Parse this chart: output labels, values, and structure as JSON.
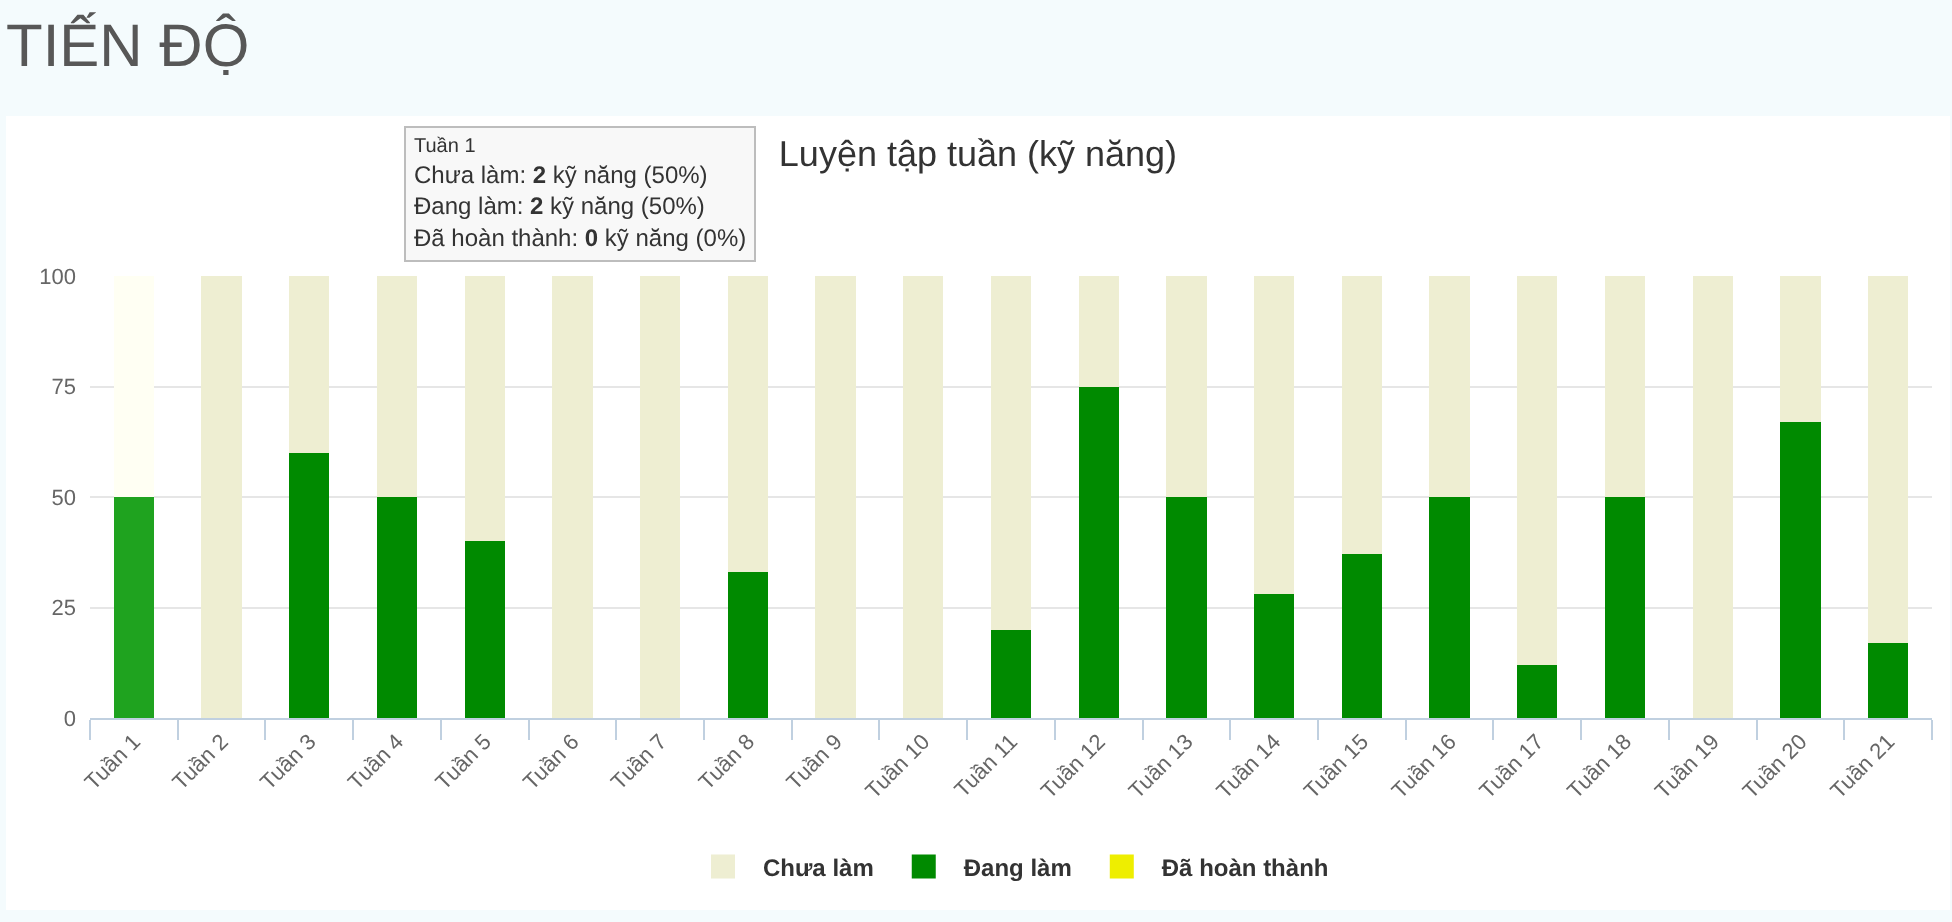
{
  "chart_data": {
    "type": "bar",
    "title": "TIẾN ĐỘ",
    "subtitle": "Luyện tập tuần (kỹ năng)",
    "categories": [
      "Tuần 1",
      "Tuần 2",
      "Tuần 3",
      "Tuần 4",
      "Tuần 5",
      "Tuần 6",
      "Tuần 7",
      "Tuần 8",
      "Tuần 9",
      "Tuần 10",
      "Tuần 11",
      "Tuần 12",
      "Tuần 13",
      "Tuần 14",
      "Tuần 15",
      "Tuần 16",
      "Tuần 17",
      "Tuần 18",
      "Tuần 19",
      "Tuần 20",
      "Tuần 21"
    ],
    "stacked": true,
    "series": [
      {
        "name": "Đã hoàn thành",
        "color": "#eeee00",
        "values": [
          0,
          0,
          0,
          0,
          0,
          0,
          0,
          0,
          0,
          0,
          0,
          0,
          0,
          0,
          0,
          0,
          0,
          0,
          0,
          0,
          0
        ]
      },
      {
        "name": "Đang làm",
        "color": "#008a00",
        "colors": [
          "#1fa31f",
          "#008a00",
          "#008a00",
          "#008a00",
          "#008a00",
          "#008a00",
          "#008a00",
          "#008a00",
          "#008a00",
          "#008a00",
          "#008a00",
          "#008a00",
          "#008a00",
          "#008a00",
          "#008a00",
          "#008a00",
          "#008a00",
          "#008a00",
          "#008a00",
          "#008a00",
          "#008a00"
        ],
        "values": [
          50,
          0,
          60,
          50,
          40,
          0,
          0,
          33,
          0,
          0,
          20,
          75,
          50,
          28,
          37,
          50,
          12,
          50,
          0,
          67,
          17
        ]
      },
      {
        "name": "Chưa làm",
        "color": "#eeeed2",
        "colors": [
          "#fffff3",
          "#eeeed2",
          "#eeeed2",
          "#eeeed2",
          "#eeeed2",
          "#eeeed2",
          "#eeeed2",
          "#eeeed2",
          "#eeeed2",
          "#eeeed2",
          "#eeeed2",
          "#eeeed2",
          "#eeeed2",
          "#eeeed2",
          "#eeeed2",
          "#eeeed2",
          "#eeeed2",
          "#eeeed2",
          "#eeeed2",
          "#eeeed2",
          "#eeeed2"
        ],
        "values": [
          50,
          100,
          40,
          50,
          60,
          100,
          100,
          67,
          100,
          100,
          80,
          25,
          50,
          72,
          63,
          50,
          88,
          50,
          100,
          33,
          83
        ]
      }
    ],
    "ylim": [
      0,
      100
    ],
    "yticks": [
      0,
      25,
      50,
      75,
      100
    ],
    "grid": "y",
    "legend": "bottom",
    "annotations": [
      "Tuần 1\nChưa làm: 2 kỹ năng (50%)\nĐang làm: 2 kỹ năng (50%)\nĐã hoàn thành: 0 kỹ năng (0%)"
    ]
  }
}
